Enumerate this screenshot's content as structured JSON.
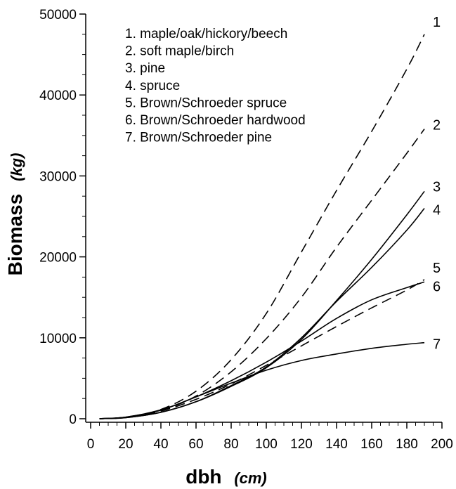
{
  "chart_data": {
    "type": "line",
    "title": "",
    "xlabel": "dbh",
    "xlabel_unit": "(cm)",
    "ylabel": "Biomass",
    "ylabel_unit": "(kg)",
    "xlim": [
      0,
      200
    ],
    "ylim": [
      0,
      50000
    ],
    "x_ticks": [
      0,
      20,
      40,
      60,
      80,
      100,
      120,
      140,
      160,
      180,
      200
    ],
    "y_ticks": [
      0,
      10000,
      20000,
      30000,
      40000,
      50000
    ],
    "legend_placement": "top-left",
    "grid": false,
    "legend": [
      "1.  maple/oak/hickory/beech",
      "2.  soft maple/birch",
      "3.  pine",
      "4.  spruce",
      "5.  Brown/Schroeder  spruce",
      "6.  Brown/Schroeder  hardwood",
      "7.  Brown/Schroeder  pine"
    ],
    "x": [
      5,
      20,
      40,
      60,
      80,
      100,
      120,
      140,
      160,
      180,
      190
    ],
    "series": [
      {
        "name": "1",
        "style": "dashed",
        "values": [
          10,
          200,
          1150,
          3400,
          7300,
          13000,
          20600,
          28200,
          35500,
          43200,
          47500
        ]
      },
      {
        "name": "2",
        "style": "dashed",
        "values": [
          10,
          170,
          1000,
          2800,
          5800,
          9900,
          15000,
          21200,
          27000,
          32800,
          35800
        ]
      },
      {
        "name": "3",
        "style": "solid",
        "values": [
          10,
          140,
          800,
          2100,
          4000,
          6300,
          9800,
          14600,
          19700,
          25200,
          28100
        ]
      },
      {
        "name": "4",
        "style": "solid",
        "values": [
          10,
          140,
          800,
          2100,
          4100,
          6400,
          10000,
          14500,
          18700,
          23300,
          26000
        ]
      },
      {
        "name": "5",
        "style": "dashed",
        "values": [
          10,
          160,
          950,
          2400,
          4300,
          6600,
          9000,
          11400,
          13700,
          15900,
          17200
        ]
      },
      {
        "name": "6",
        "style": "solid",
        "values": [
          10,
          200,
          1100,
          2700,
          4700,
          7000,
          9600,
          12400,
          14700,
          16200,
          16900
        ]
      },
      {
        "name": "7",
        "style": "solid",
        "values": [
          10,
          190,
          1050,
          2700,
          4400,
          6000,
          7200,
          8000,
          8700,
          9200,
          9400
        ]
      }
    ]
  }
}
